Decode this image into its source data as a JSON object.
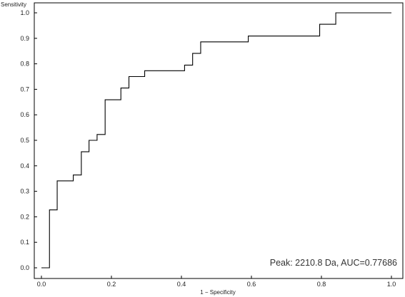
{
  "chart_data": {
    "type": "line",
    "title": "",
    "xlabel": "1 − Specificity",
    "ylabel": "Sensitivity",
    "xlim": [
      0,
      1
    ],
    "ylim": [
      0,
      1
    ],
    "grid": false,
    "annotation": "Peak: 2210.8 Da, AUC=0.77686",
    "x_ticks": [
      "0.0",
      "0.2",
      "0.4",
      "0.6",
      "0.8",
      "1.0"
    ],
    "y_ticks": [
      "0.0",
      "0.1",
      "0.2",
      "0.3",
      "0.4",
      "0.5",
      "0.6",
      "0.7",
      "0.8",
      "0.9",
      "1.0"
    ],
    "series": [
      {
        "line_color": "#000000",
        "points": [
          [
            0.0,
            0.0
          ],
          [
            0.023,
            0.0
          ],
          [
            0.023,
            0.227
          ],
          [
            0.045,
            0.227
          ],
          [
            0.045,
            0.341
          ],
          [
            0.091,
            0.341
          ],
          [
            0.091,
            0.364
          ],
          [
            0.114,
            0.364
          ],
          [
            0.114,
            0.455
          ],
          [
            0.136,
            0.455
          ],
          [
            0.136,
            0.5
          ],
          [
            0.159,
            0.5
          ],
          [
            0.159,
            0.523
          ],
          [
            0.182,
            0.523
          ],
          [
            0.182,
            0.659
          ],
          [
            0.227,
            0.659
          ],
          [
            0.227,
            0.705
          ],
          [
            0.25,
            0.705
          ],
          [
            0.25,
            0.75
          ],
          [
            0.295,
            0.75
          ],
          [
            0.295,
            0.773
          ],
          [
            0.409,
            0.773
          ],
          [
            0.409,
            0.795
          ],
          [
            0.432,
            0.795
          ],
          [
            0.432,
            0.841
          ],
          [
            0.455,
            0.841
          ],
          [
            0.455,
            0.886
          ],
          [
            0.591,
            0.886
          ],
          [
            0.591,
            0.909
          ],
          [
            0.795,
            0.909
          ],
          [
            0.795,
            0.955
          ],
          [
            0.841,
            0.955
          ],
          [
            0.841,
            1.0
          ],
          [
            1.0,
            1.0
          ]
        ]
      }
    ]
  }
}
